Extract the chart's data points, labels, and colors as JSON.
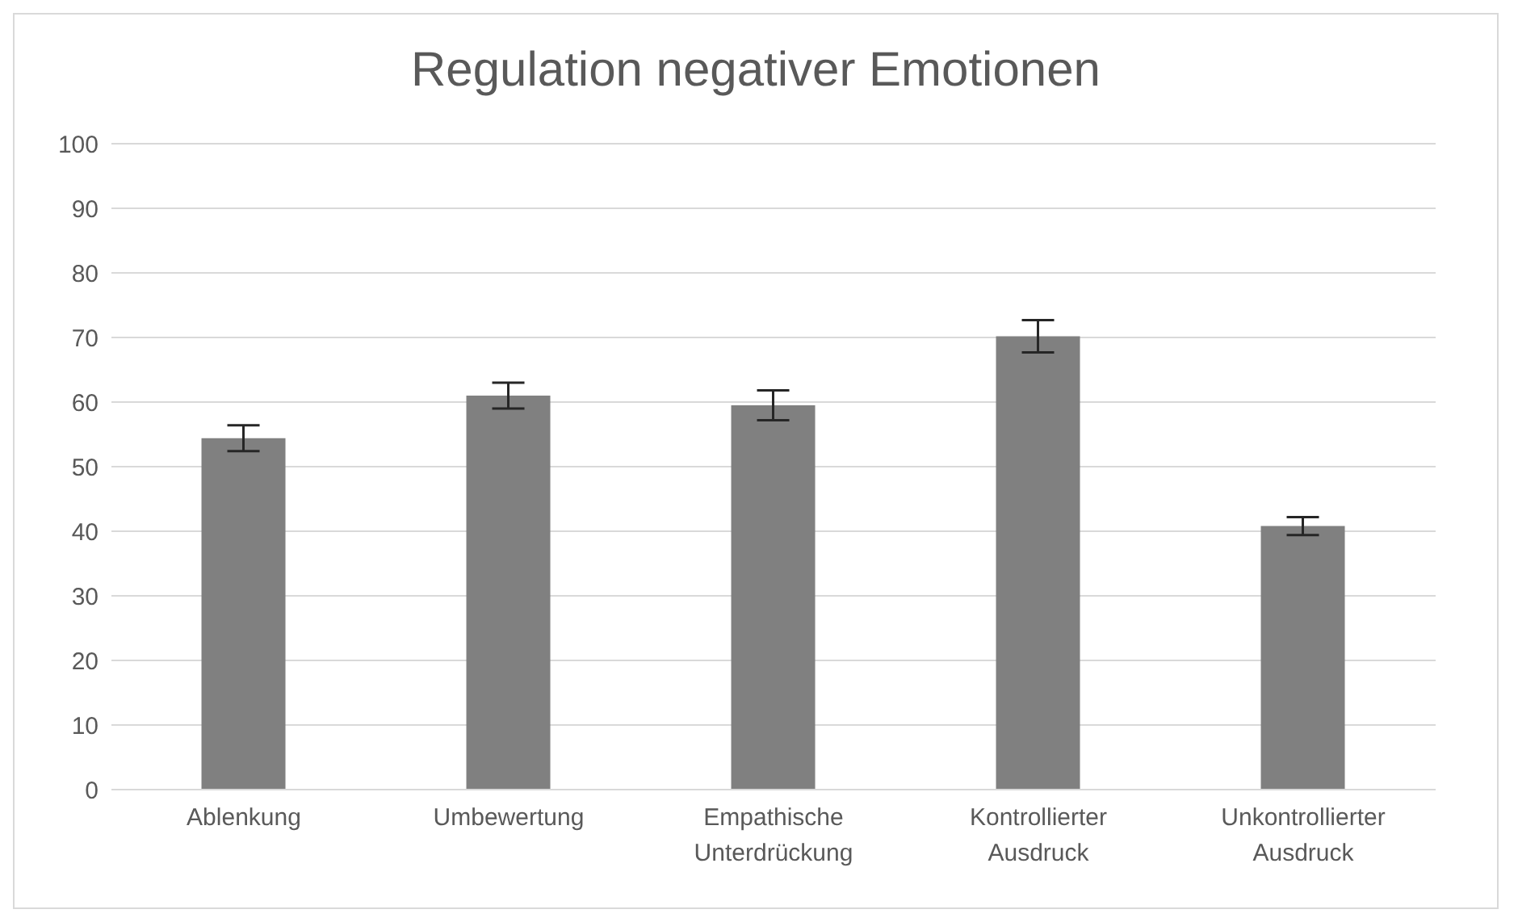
{
  "chart_data": {
    "type": "bar",
    "title": "Regulation negativer Emotionen",
    "categories": [
      "Ablenkung",
      "Umbewertung",
      "Empathische Unterdrückung",
      "Kontrollierter Ausdruck",
      "Unkontrollierter Ausdruck"
    ],
    "values": [
      54.4,
      61,
      59.5,
      70.2,
      40.8
    ],
    "errors": [
      2,
      2,
      2.3,
      2.5,
      1.4
    ],
    "color": "#808080",
    "ylim": [
      0,
      100
    ],
    "yticks": [
      0,
      10,
      20,
      30,
      40,
      50,
      60,
      70,
      80,
      90,
      100
    ],
    "grid": "y"
  }
}
